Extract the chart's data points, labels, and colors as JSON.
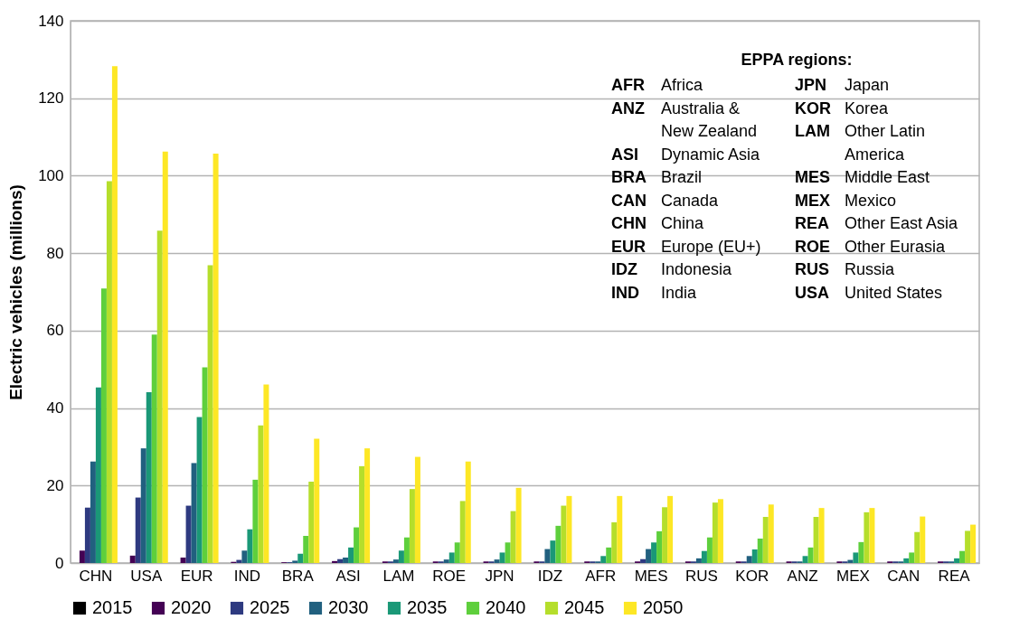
{
  "chart_data": {
    "type": "bar",
    "ylabel": "Electric vehicles (millions)",
    "categories": [
      "CHN",
      "USA",
      "EUR",
      "IND",
      "BRA",
      "ASI",
      "LAM",
      "ROE",
      "JPN",
      "IDZ",
      "AFR",
      "MES",
      "RUS",
      "KOR",
      "ANZ",
      "MEX",
      "CAN",
      "REA"
    ],
    "series": [
      {
        "name": "2015",
        "color": "#000000",
        "values": [
          0,
          0,
          0,
          0,
          0,
          0,
          0,
          0,
          0,
          0,
          0,
          0,
          0,
          0,
          0,
          0,
          0,
          0
        ]
      },
      {
        "name": "2020",
        "color": "#440154",
        "values": [
          3.2,
          1.9,
          1.4,
          0.3,
          0.2,
          0.5,
          0.4,
          0.4,
          0.4,
          0.4,
          0.4,
          0.4,
          0.4,
          0.4,
          0.4,
          0.4,
          0.4,
          0.4
        ]
      },
      {
        "name": "2025",
        "color": "#2e3a80",
        "values": [
          14.3,
          16.9,
          14.8,
          0.8,
          0.2,
          1.0,
          0.4,
          0.4,
          0.4,
          0.4,
          0.4,
          1.0,
          0.4,
          0.4,
          0.4,
          0.4,
          0.4,
          0.4
        ]
      },
      {
        "name": "2030",
        "color": "#21607f",
        "values": [
          26.2,
          29.6,
          25.8,
          3.2,
          0.6,
          1.4,
          0.9,
          0.9,
          0.9,
          3.6,
          0.4,
          3.6,
          1.2,
          1.8,
          0.4,
          0.8,
          0.4,
          0.4
        ]
      },
      {
        "name": "2035",
        "color": "#1a9877",
        "values": [
          45.3,
          44.1,
          37.7,
          8.7,
          2.4,
          4.0,
          3.2,
          2.7,
          2.7,
          5.8,
          1.8,
          5.3,
          3.1,
          3.5,
          1.8,
          2.7,
          1.2,
          1.2
        ]
      },
      {
        "name": "2040",
        "color": "#5ecf3c",
        "values": [
          70.9,
          59.0,
          50.5,
          21.5,
          7.0,
          9.2,
          6.6,
          5.3,
          5.3,
          9.6,
          4.0,
          8.2,
          6.6,
          6.3,
          4.0,
          5.4,
          2.7,
          3.1
        ]
      },
      {
        "name": "2045",
        "color": "#b5de2b",
        "values": [
          98.6,
          85.8,
          76.9,
          35.5,
          21.0,
          25.0,
          19.1,
          16.0,
          13.4,
          14.8,
          10.5,
          14.4,
          15.6,
          11.9,
          11.9,
          13.1,
          8.0,
          8.3
        ]
      },
      {
        "name": "2050",
        "color": "#fde725",
        "values": [
          128.3,
          106.2,
          105.7,
          46.1,
          32.1,
          29.6,
          27.4,
          26.2,
          19.4,
          17.3,
          17.3,
          17.3,
          16.5,
          15.1,
          14.2,
          14.2,
          12.0,
          9.9
        ]
      }
    ],
    "ylim": [
      0,
      140
    ],
    "yticks": [
      0,
      20,
      40,
      60,
      80,
      100,
      120,
      140
    ],
    "grid": "y",
    "legend": "bottom",
    "annotations": [
      "EPPA regions:",
      "AFR Africa",
      "ANZ Australia &\nNew Zealand",
      "ASI Dynamic Asia",
      "BRA Brazil",
      "CAN Canada",
      "CHN China",
      "EUR Europe (EU+)",
      "IDZ Indonesia",
      "IND India",
      "JPN Japan",
      "KOR Korea",
      "LAM Other Latin\nAmerica",
      "MES Middle East",
      "MEX Mexico",
      "REA Other East Asia",
      "ROE Other Eurasia",
      "RUS Russia",
      "USA United States"
    ]
  }
}
